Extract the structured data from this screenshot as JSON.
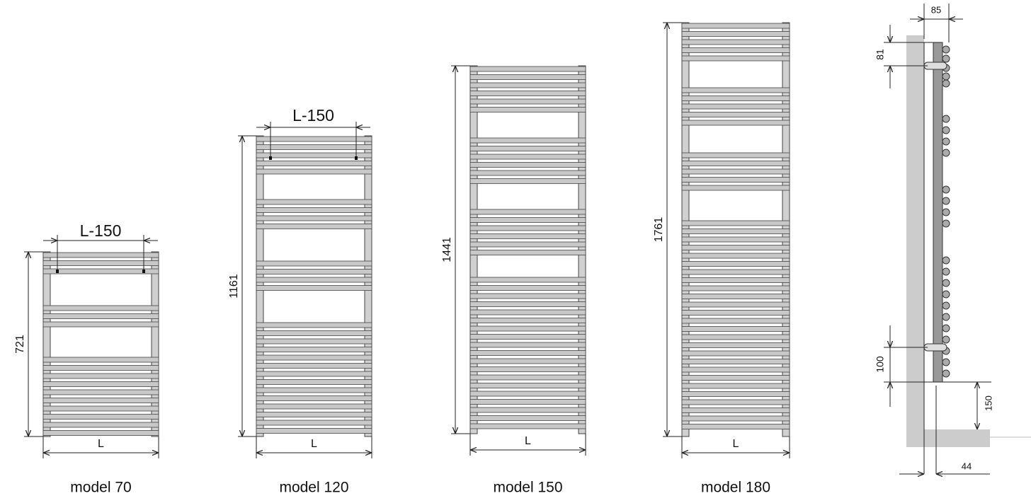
{
  "models": [
    {
      "label": "model 70",
      "height": "721",
      "width": "L",
      "spacing": "L-150"
    },
    {
      "label": "model 120",
      "height": "1161",
      "width": "L",
      "spacing": "L-150"
    },
    {
      "label": "model 150",
      "height": "1441",
      "width": "L"
    },
    {
      "label": "model 180",
      "height": "1761",
      "width": "L"
    }
  ],
  "side_view": {
    "depth": "85",
    "top_offset": "81",
    "bottom_offset": "100",
    "floor_clearance": "150",
    "wall_gap": "44"
  }
}
